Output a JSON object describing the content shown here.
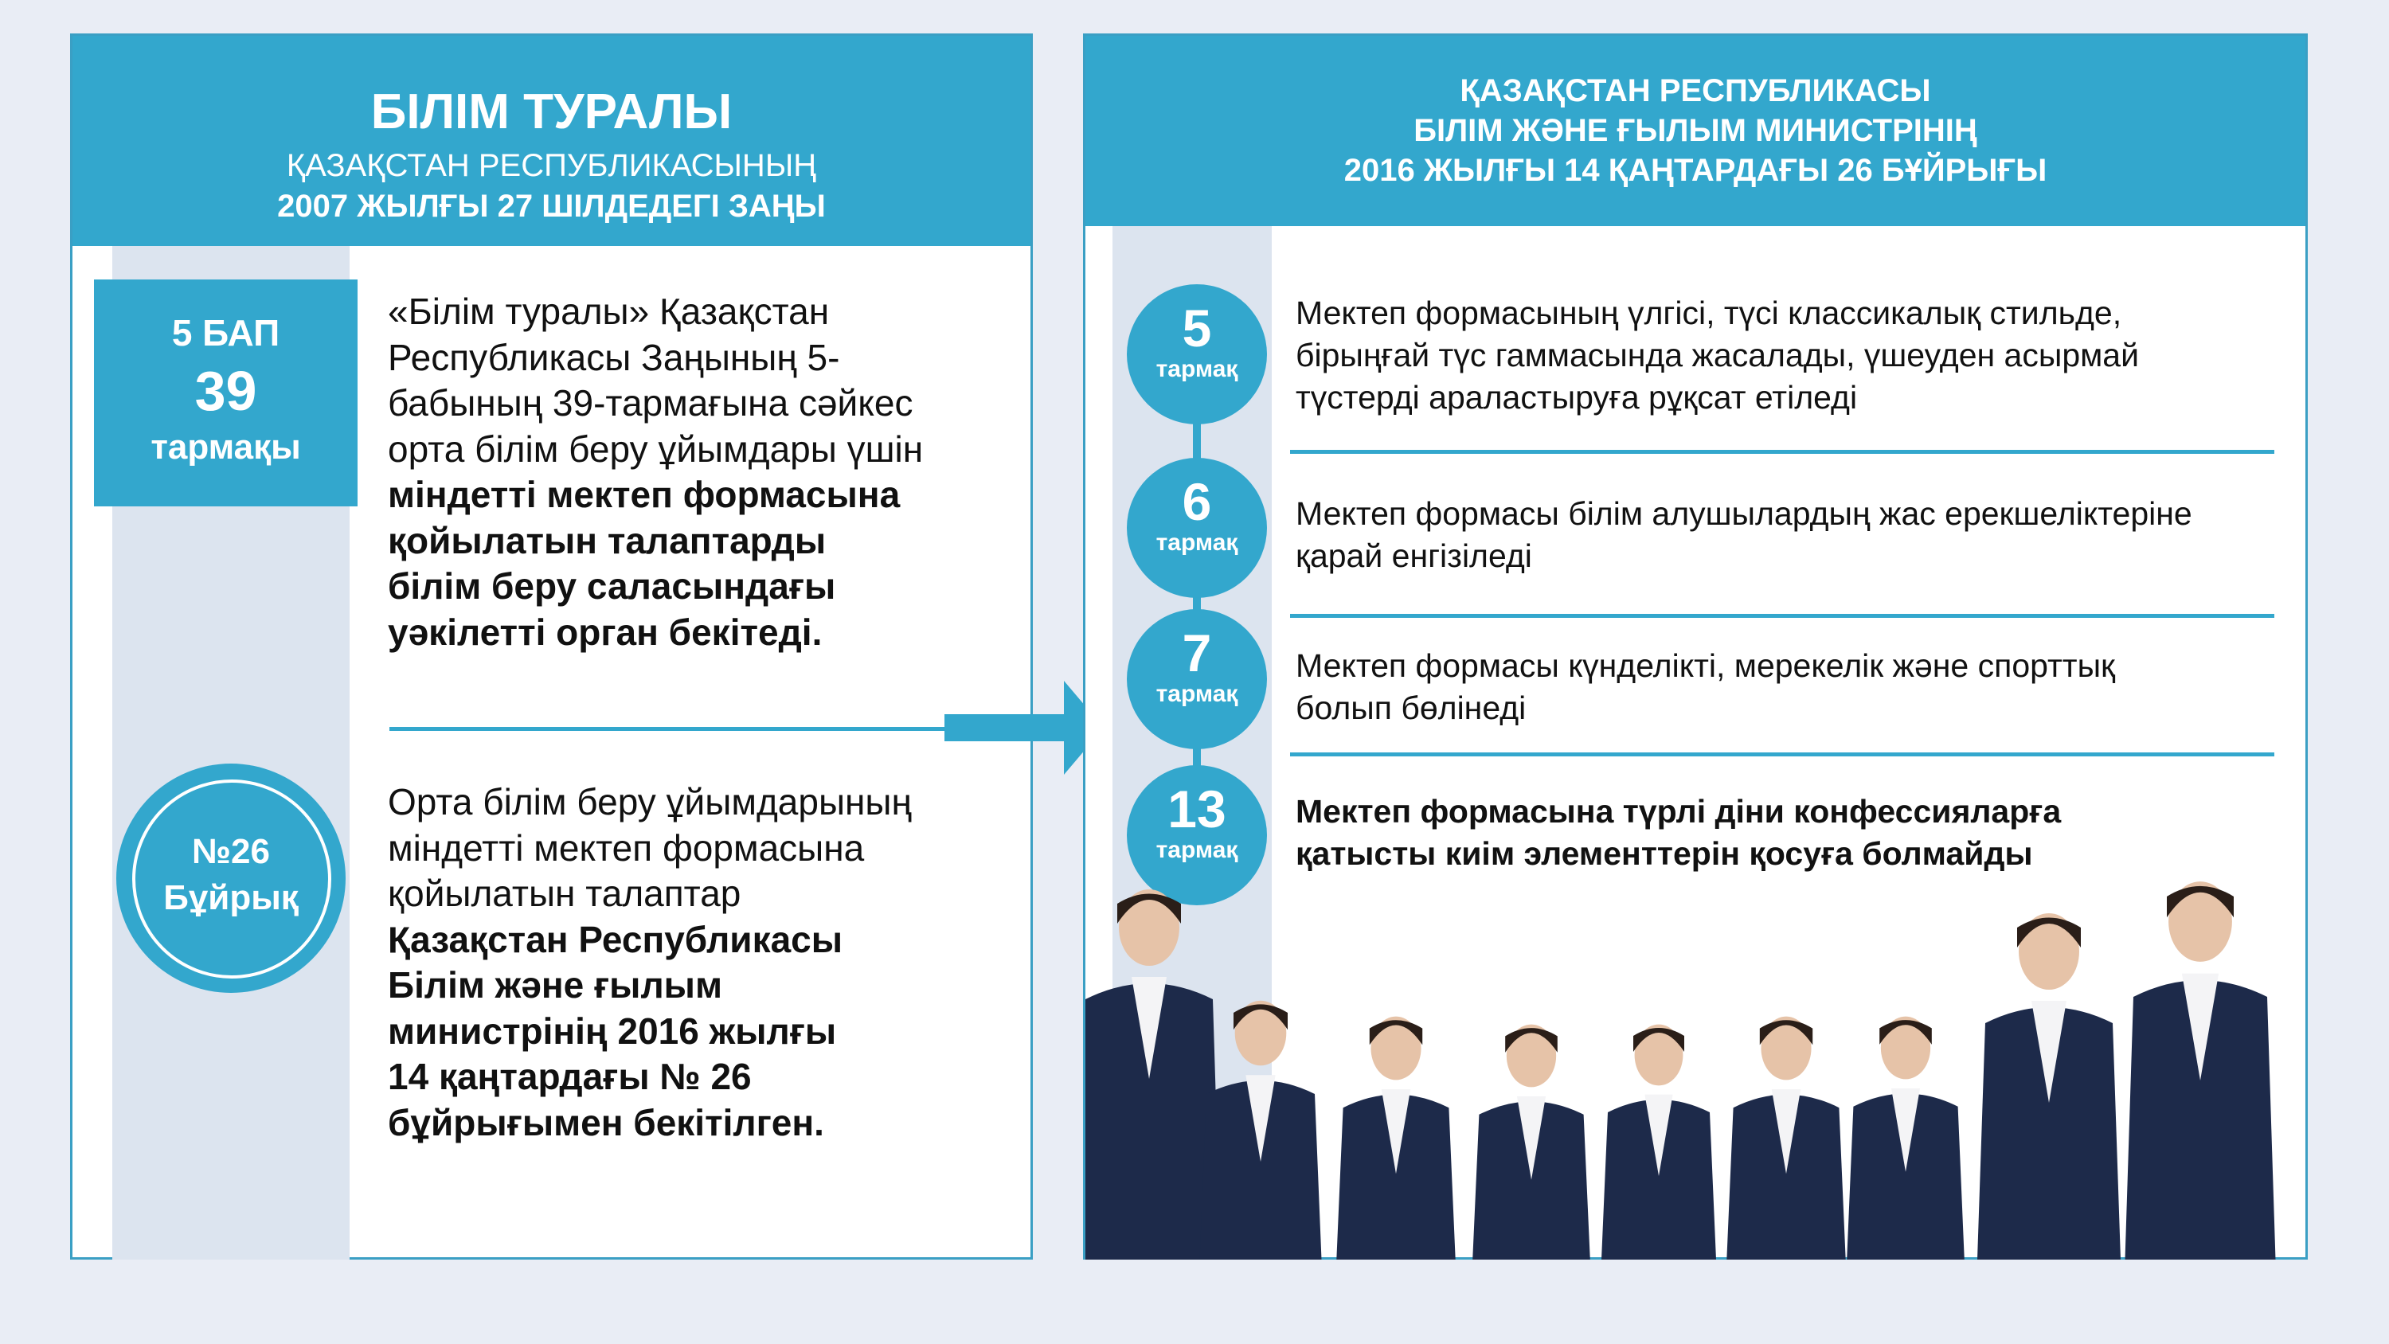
{
  "left": {
    "title": "БІЛІМ ТУРАЛЫ",
    "subtitle1": "ҚАЗАҚСТАН РЕСПУБЛИКАСЫНЫҢ",
    "subtitle2": "2007 ЖЫЛҒЫ 27 ШІЛДЕДЕГІ ЗАҢЫ",
    "badge": {
      "line1": "5 БАП",
      "line2": "39",
      "line3": "тармақы"
    },
    "para1_regular": [
      "«Білім туралы» Қазақстан",
      "Республикасы Заңының 5-",
      "бабының 39-тармағына сәйкес",
      "орта білім беру ұйымдары үшін"
    ],
    "para1_bold": [
      "міндетті мектеп формасына",
      "қойылатын талаптарды",
      "білім беру саласындағы",
      "уәкілетті орган бекітеді."
    ],
    "circle": {
      "line1": "№26",
      "line2": "Бұйрық"
    },
    "para2_regular": [
      "Орта білім беру ұйымдарының",
      "міндетті мектеп формасына",
      "қойылатын талаптар"
    ],
    "para2_bold": [
      "Қазақстан Республикасы",
      "Білім және ғылым",
      "министрінің 2016 жылғы",
      "14 қаңтардағы № 26",
      "бұйрығымен бекітілген."
    ]
  },
  "right": {
    "title1": "ҚАЗАҚСТАН РЕСПУБЛИКАСЫ",
    "title2": "БІЛІМ ЖӘНЕ ҒЫЛЫМ МИНИСТРІНІҢ",
    "title3": "2016 ЖЫЛҒЫ 14 ҚАҢТАРДАҒЫ 26 БҰЙРЫҒЫ",
    "items": [
      {
        "num": "5",
        "unit": "тармақ",
        "lines": [
          "Мектеп формасының үлгісі, түсі классикалық стильде,",
          "бірыңғай түс гаммасында жасалады, үшеуден асырмай",
          "түстерді араластыруға рұқсат етіледі"
        ]
      },
      {
        "num": "6",
        "unit": "тармақ",
        "lines": [
          "Мектеп формасы білім алушылардың жас ерекшеліктеріне",
          "қарай енгізіледі"
        ]
      },
      {
        "num": "7",
        "unit": "тармақ",
        "lines": [
          "Мектеп формасы күнделікті, мерекелік және спорттық",
          "болып бөлінеді"
        ]
      },
      {
        "num": "13",
        "unit": "тармақ",
        "lines": [
          "Мектеп формасына түрлі діни конфессияларға",
          "қатысты киім элементтерін қосуға болмайды"
        ]
      }
    ]
  },
  "colors": {
    "accent": "#33a7cd",
    "strip": "#dce4ef",
    "background": "#e9edf5",
    "uniform": "#1d2a4a"
  }
}
